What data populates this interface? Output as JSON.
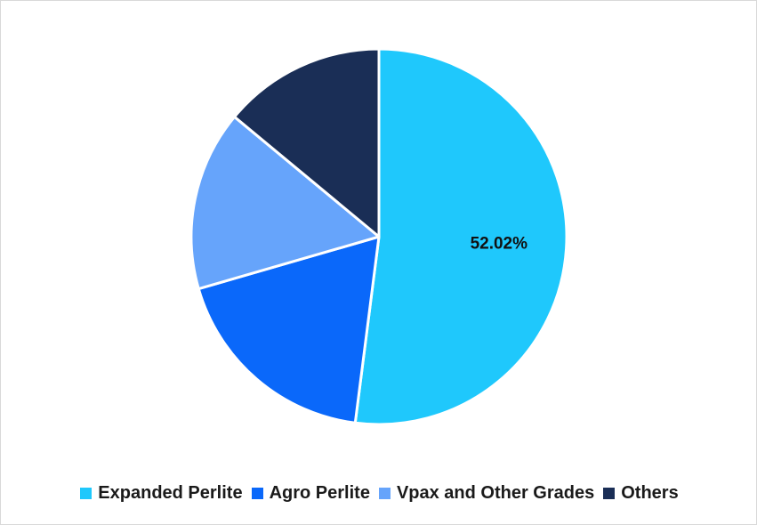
{
  "chart_data": {
    "type": "pie",
    "title": "",
    "start_angle_deg": 0,
    "direction": "clockwise",
    "slices": [
      {
        "name": "Expanded Perlite",
        "value": 52.02,
        "color": "#1FC8FC",
        "label": "52.02%"
      },
      {
        "name": "Agro Perlite",
        "value": 18.5,
        "color": "#0A68FA",
        "label": ""
      },
      {
        "name": "Vpax and Other Grades",
        "value": 15.5,
        "color": "#66A4FB",
        "label": ""
      },
      {
        "name": "Others",
        "value": 13.98,
        "color": "#1A2E56",
        "label": ""
      }
    ],
    "legend_position": "bottom"
  },
  "legend": {
    "items": [
      {
        "label": "Expanded Perlite",
        "color": "#1FC8FC"
      },
      {
        "label": "Agro Perlite",
        "color": "#0A68FA"
      },
      {
        "label": "Vpax and Other Grades",
        "color": "#66A4FB"
      },
      {
        "label": "Others",
        "color": "#1A2E56"
      }
    ]
  }
}
